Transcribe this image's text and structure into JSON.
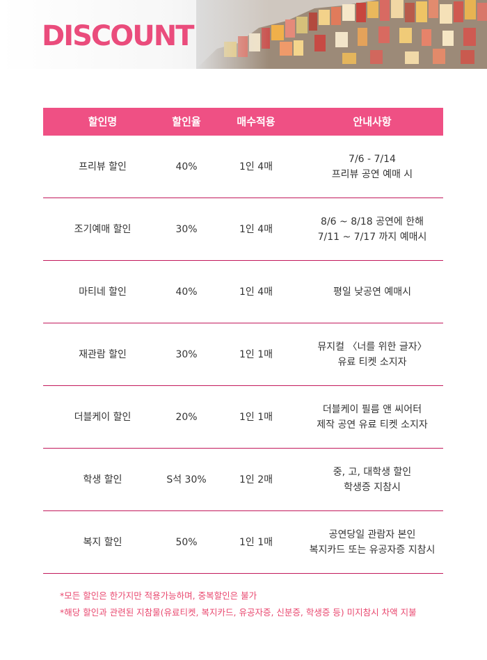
{
  "header": {
    "title": "DISCOUNT"
  },
  "table": {
    "columns": [
      "할인명",
      "할인율",
      "매수적용",
      "안내사항"
    ],
    "rows": [
      {
        "name": "프리뷰 할인",
        "rate": "40%",
        "limit": "1인 4매",
        "info": [
          "7/6 - 7/14",
          "프리뷰 공연 예매 시"
        ]
      },
      {
        "name": "조기예매 할인",
        "rate": "30%",
        "limit": "1인 4매",
        "info": [
          "8/6 ~ 8/18 공연에 한해",
          "7/11 ~ 7/17 까지 예매시"
        ]
      },
      {
        "name": "마티네 할인",
        "rate": "40%",
        "limit": "1인 4매",
        "info": [
          "평일 낮공연 예매시",
          ""
        ]
      },
      {
        "name": "재관람 할인",
        "rate": "30%",
        "limit": "1인 1매",
        "info": [
          "뮤지컬 〈너를 위한 글자〉",
          "유료 티켓 소지자"
        ]
      },
      {
        "name": "더블케이 할인",
        "rate": "20%",
        "limit": "1인 1매",
        "info": [
          "더블케이 필름 앤 씨어터",
          "제작 공연 유료 티켓 소지자"
        ]
      },
      {
        "name": "학생 할인",
        "rate": "S석 30%",
        "limit": "1인 2매",
        "info": [
          "중, 고, 대학생 할인",
          "학생증 지참시"
        ]
      },
      {
        "name": "복지 할인",
        "rate": "50%",
        "limit": "1인 1매",
        "info": [
          "공연당일 관람자 본인",
          "복지카드 또는 유공자증 지참시"
        ]
      }
    ]
  },
  "notes": [
    "*모든 할인은 한가지만 적용가능하며, 중복할인은 불가",
    "*해당 할인과 관련된 지참물(유료티켓, 복지카드, 유공자증, 신분증, 학생증 등) 미지참시 차액 지불"
  ],
  "colors": {
    "accent": "#ef5084",
    "title": "#ea4c7c",
    "divider": "#c2185b",
    "note": "#e9486f"
  }
}
